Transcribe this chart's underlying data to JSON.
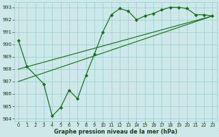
{
  "title": "Graphe pression niveau de la mer (hPa)",
  "background_color": "#cce8e8",
  "grid_color": "#99cccc",
  "line_color": "#1a6e1a",
  "line1_x": [
    0,
    1,
    3,
    4,
    5,
    6,
    7,
    8,
    9,
    10,
    11,
    12,
    13,
    14,
    15,
    16,
    17,
    18,
    19,
    20,
    21,
    22,
    23
  ],
  "line1_y": [
    990.3,
    988.2,
    986.8,
    984.2,
    984.9,
    986.3,
    985.6,
    987.5,
    989.2,
    991.0,
    992.4,
    992.9,
    992.7,
    992.0,
    992.3,
    992.5,
    992.8,
    993.0,
    993.0,
    992.9,
    992.4,
    992.4,
    992.3
  ],
  "line2_x": [
    0,
    23
  ],
  "line2_y": [
    988.0,
    992.3
  ],
  "line3_x": [
    0,
    23
  ],
  "line3_y": [
    987.0,
    992.3
  ],
  "xlim": [
    -0.5,
    23.5
  ],
  "ylim": [
    983.8,
    993.4
  ],
  "xticks": [
    0,
    1,
    2,
    3,
    4,
    5,
    6,
    7,
    8,
    9,
    10,
    11,
    12,
    13,
    14,
    15,
    16,
    17,
    18,
    19,
    20,
    21,
    22,
    23
  ],
  "yticks": [
    984,
    985,
    986,
    987,
    988,
    989,
    990,
    991,
    992,
    993
  ],
  "title_fontsize": 5.8,
  "tick_fontsize": 4.8,
  "ytick_fontsize": 5.2
}
